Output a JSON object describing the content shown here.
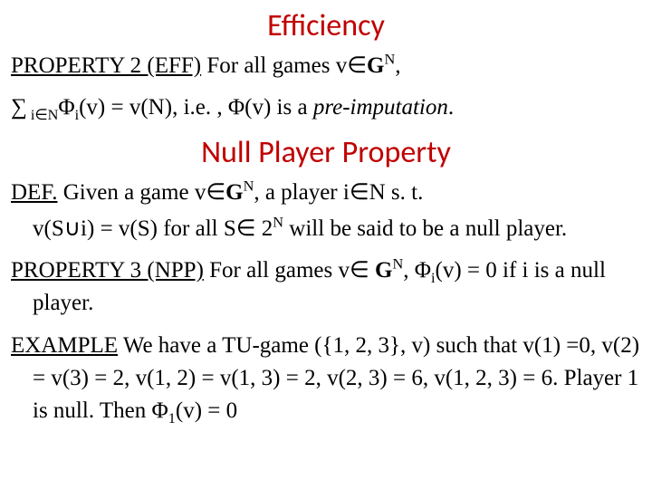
{
  "colors": {
    "heading_color": "#c00000",
    "text_color": "#000000",
    "background_color": "#ffffff"
  },
  "typography": {
    "heading_font_family": "Calibri, Arial, sans-serif",
    "heading_font_size_pt": 26,
    "body_font_family": "Times New Roman, serif",
    "body_font_size_pt": 19
  },
  "headings": {
    "h1": "Efficiency",
    "h2": "Null Player Property"
  },
  "eff": {
    "property_label": "PROPERTY 2 (EFF)",
    "property_text_pre": " For all games v",
    "in": "∈",
    "G": "G",
    "N_sup": "N",
    "tail": ", ",
    "sum": "∑",
    "sum_sub_pre": " i",
    "sum_sub_in": "∈",
    "sum_sub_N": "N",
    "phi": "Φ",
    "phi_sub": "i",
    "phi_arg": "(v) = v(N), i.e. , Φ(v) is a ",
    "preimp": "pre-imputation",
    "dot": "."
  },
  "def": {
    "label": "DEF.",
    "text_pre": " Given a game v",
    "in": "∈",
    "G": "G",
    "N_sup": "N",
    "text_mid": ", a player i",
    "in2": "∈",
    "text_post": "N s. t.",
    "line2_pre": "v(S",
    "cup": "∪",
    "line2_mid": "i) = v(S) for all S",
    "in3": "∈",
    "line2_2N_pre": " 2",
    "line2_2N_sup": "N",
    "line2_post": " will be said to be a null player."
  },
  "npp": {
    "label": "PROPERTY 3 (NPP)",
    "text_pre": " For all games v",
    "in": "∈",
    "space": " ",
    "G": "G",
    "N_sup": "N",
    "text_mid": ", Φ",
    "phi_sub": "i",
    "text_post": "(v) = 0 if i is a null player."
  },
  "example": {
    "label": "EXAMPLE",
    "text": " We have a TU-game ({1, 2, 3}, v) such that v(1) =0, v(2) = v(3) = 2, v(1, 2) = v(1, 3) = 2, v(2, 3) = 6, v(1, 2, 3) = 6. Player 1 is null. Then Φ",
    "phi_sub": "1",
    "tail": "(v) = 0"
  }
}
